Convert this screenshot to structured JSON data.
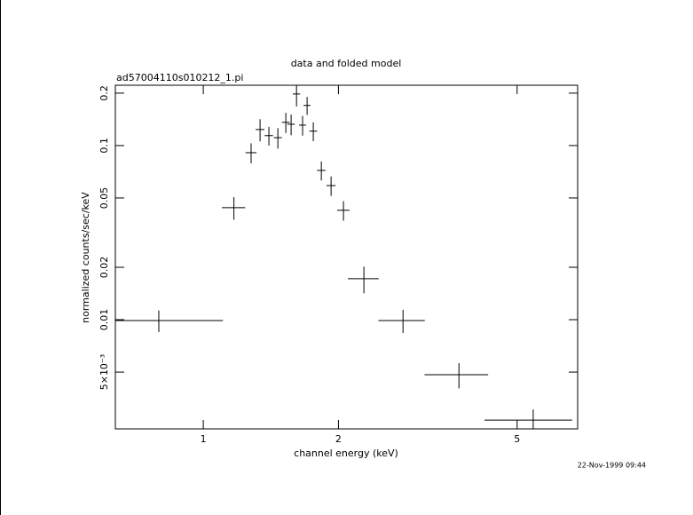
{
  "chart_data": {
    "type": "scatter",
    "title": "data and folded model",
    "subtitle": "ad57004110s010212_1.pi",
    "x_label": "channel energy (keV)",
    "y_label": "normalized counts/sec/keV",
    "timestamp": "22-Nov-1999 09:44",
    "xscale": "log",
    "yscale": "log",
    "xlim": [
      0.637,
      6.82
    ],
    "ylim": [
      0.00236,
      0.222
    ],
    "xticks": [
      1,
      2,
      5
    ],
    "yticks": [
      {
        "value": 0.005,
        "label": "5×10⁻³"
      },
      0.01,
      0.02,
      0.05,
      0.1,
      0.2
    ],
    "series": [
      {
        "color": "#000000",
        "x": [
          0.796,
          1.17,
          1.278,
          1.338,
          1.4,
          1.466,
          1.527,
          1.569,
          1.613,
          1.664,
          1.703,
          1.758,
          1.832,
          1.926,
          2.052,
          2.279,
          2.785,
          3.71,
          5.43
        ],
        "xerr": [
          0.31,
          0.07,
          0.036,
          0.03,
          0.03,
          0.03,
          0.03,
          0.03,
          0.03,
          0.03,
          0.03,
          0.035,
          0.04,
          0.045,
          0.065,
          0.18,
          0.33,
          0.6,
          1.2
        ],
        "values": [
          0.00989,
          0.044,
          0.091,
          0.1236,
          0.114,
          0.111,
          0.136,
          0.1326,
          0.1977,
          0.131,
          0.17,
          0.121,
          0.072,
          0.0589,
          0.0425,
          0.01718,
          0.00989,
          0.00483,
          0.00265
        ],
        "yerr": [
          0.0014,
          0.0065,
          0.012,
          0.018,
          0.014,
          0.015,
          0.018,
          0.018,
          0.03,
          0.017,
          0.02,
          0.015,
          0.009,
          0.0075,
          0.0055,
          0.003,
          0.0015,
          0.0008,
          0.0004
        ]
      }
    ]
  }
}
